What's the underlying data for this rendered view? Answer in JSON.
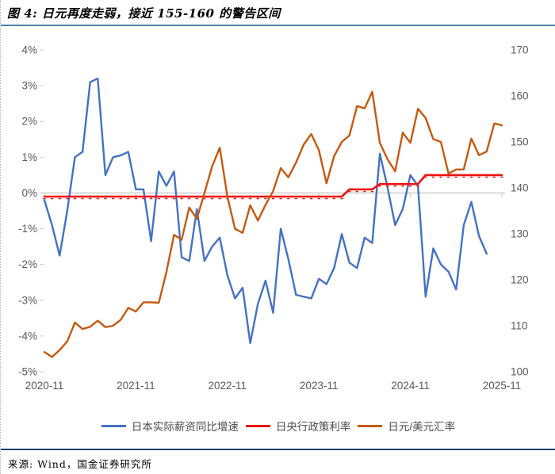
{
  "header": {
    "title": "图 4:  日元再度走弱，接近 155-160 的警告区间"
  },
  "footer": {
    "source": "来源: Wind，国金证券研究所"
  },
  "colors": {
    "title_rule": "#4a7fad",
    "footer_rule": "#1f3e6b",
    "axis_text": "#595959",
    "zero_line": "#c9c9c9",
    "axis_tick": "#c5d0de",
    "wage_blue": "#4472c4",
    "policy_red": "#ee1111",
    "fx_orange": "#c55a11"
  },
  "chart_data": {
    "type": "line",
    "title": "日元再度走弱，接近155-160的警告区间",
    "x_start": "2020-11",
    "x_step": "1 month",
    "x_tick_labels": [
      "2020-11",
      "2021-11",
      "2022-11",
      "2023-11",
      "2024-11",
      "2025-11"
    ],
    "left_axis": {
      "max": 4,
      "min": -5,
      "ticks": [
        "4%",
        "3%",
        "2%",
        "1%",
        "0%",
        "-1%",
        "-2%",
        "-3%",
        "-4%",
        "-5%"
      ]
    },
    "right_axis": {
      "max": 170,
      "min": 100,
      "ticks": [
        "170",
        "160",
        "150",
        "140",
        "130",
        "120",
        "110",
        "100"
      ]
    },
    "grid": "zero-line-only",
    "legend_position": "bottom",
    "series": [
      {
        "name": "日本实际薪资同比增速",
        "axis": "left",
        "unit": "%",
        "color": "#4472c4",
        "values": [
          -0.2,
          -0.9,
          -1.75,
          -0.5,
          1.0,
          1.15,
          3.1,
          3.2,
          0.5,
          1.0,
          1.05,
          1.15,
          0.1,
          0.1,
          -1.35,
          0.6,
          0.2,
          0.6,
          -1.8,
          -1.9,
          -0.45,
          -1.9,
          -1.5,
          -1.25,
          -2.3,
          -2.95,
          -2.65,
          -4.2,
          -3.1,
          -2.45,
          -3.35,
          -1.0,
          -1.85,
          -2.85,
          -2.9,
          -2.95,
          -2.4,
          -2.55,
          -2.1,
          -1.15,
          -1.95,
          -2.1,
          -1.25,
          -1.4,
          1.1,
          0.15,
          -0.9,
          -0.45,
          0.5,
          0.2,
          -2.9,
          -1.55,
          -2.0,
          -2.2,
          -2.7,
          -0.9,
          -0.25,
          -1.2,
          -1.7
        ]
      },
      {
        "name": "日央行政策利率",
        "axis": "left",
        "unit": "%",
        "color": "#ee1111",
        "marker": "dash",
        "values": [
          -0.1,
          -0.1,
          -0.1,
          -0.1,
          -0.1,
          -0.1,
          -0.1,
          -0.1,
          -0.1,
          -0.1,
          -0.1,
          -0.1,
          -0.1,
          -0.1,
          -0.1,
          -0.1,
          -0.1,
          -0.1,
          -0.1,
          -0.1,
          -0.1,
          -0.1,
          -0.1,
          -0.1,
          -0.1,
          -0.1,
          -0.1,
          -0.1,
          -0.1,
          -0.1,
          -0.1,
          -0.1,
          -0.1,
          -0.1,
          -0.1,
          -0.1,
          -0.1,
          -0.1,
          -0.1,
          -0.1,
          0.1,
          0.1,
          0.1,
          0.1,
          0.25,
          0.25,
          0.25,
          0.25,
          0.25,
          0.25,
          0.5,
          0.5,
          0.5,
          0.5,
          0.5,
          0.5,
          0.5,
          0.5,
          0.5,
          0.5,
          0.5
        ]
      },
      {
        "name": "日元/美元汇率",
        "axis": "right",
        "unit": "JPY per USD",
        "color": "#c55a11",
        "values": [
          104.3,
          103.2,
          104.7,
          106.6,
          110.7,
          109.3,
          109.8,
          111.1,
          109.7,
          110.0,
          111.3,
          113.9,
          113.1,
          115.1,
          115.1,
          115.0,
          121.7,
          129.8,
          128.7,
          135.7,
          133.3,
          138.9,
          144.7,
          148.7,
          138.1,
          131.1,
          130.2,
          136.2,
          132.9,
          136.3,
          139.3,
          144.3,
          142.3,
          145.5,
          149.4,
          151.7,
          148.2,
          141.0,
          146.9,
          150.0,
          151.4,
          157.8,
          157.3,
          160.9,
          149.8,
          146.2,
          143.6,
          152.0,
          149.8,
          157.2,
          155.2,
          150.6,
          150.0,
          143.1,
          144.0,
          144.0,
          150.7,
          147.1,
          147.9,
          154.0,
          153.6
        ]
      }
    ]
  }
}
